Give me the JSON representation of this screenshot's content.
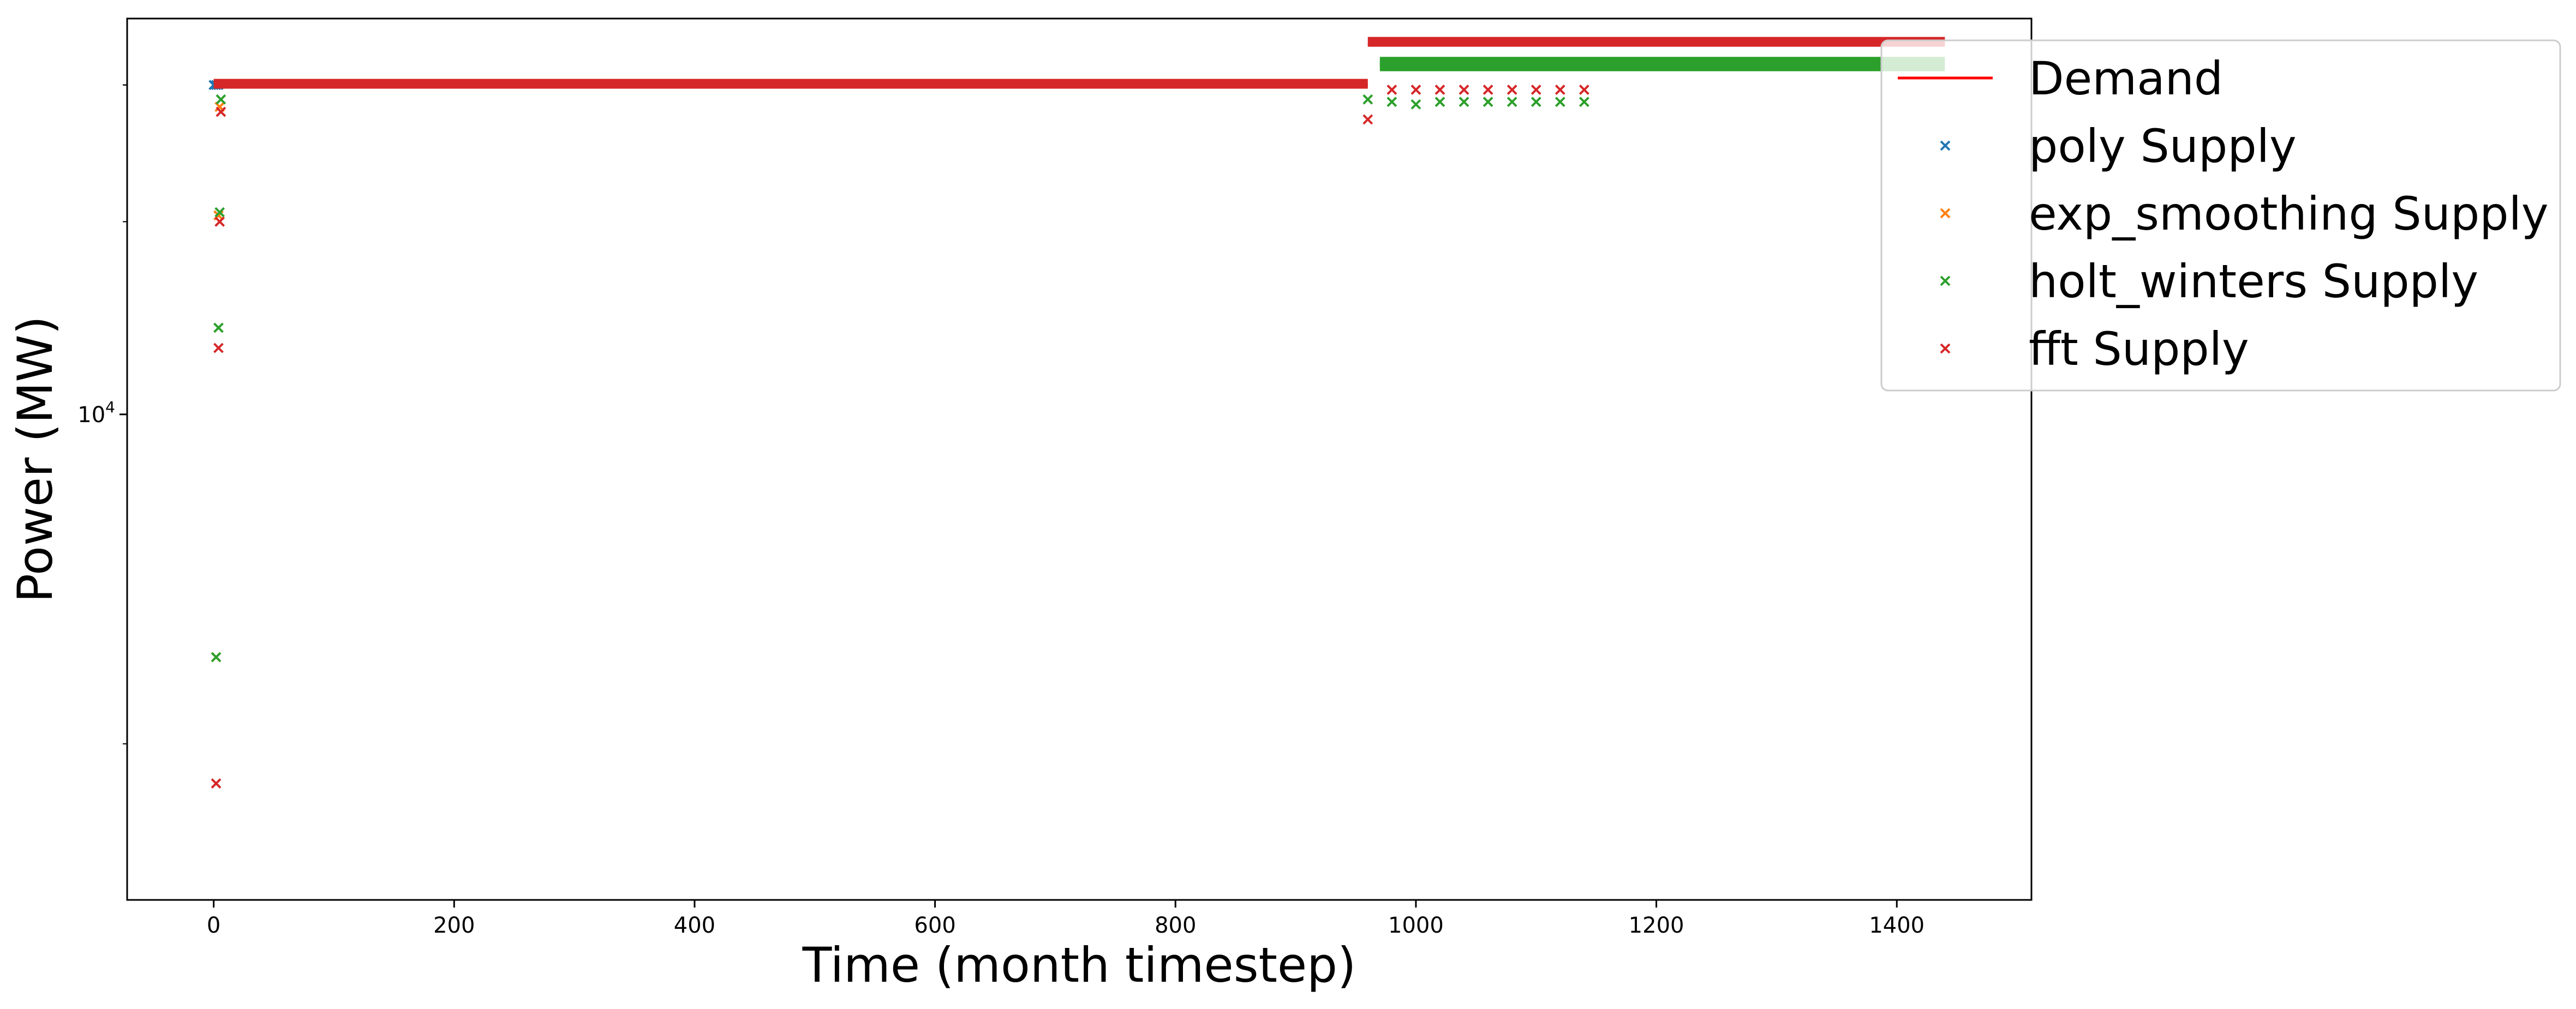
{
  "chart_data": {
    "type": "scatter",
    "xlabel": "Time (month timestep)",
    "ylabel": "Power (MW)",
    "yscale": "log",
    "xlim": [
      -72,
      1512
    ],
    "ylim": [
      3600,
      23000
    ],
    "x_ticks": [
      0,
      200,
      400,
      600,
      800,
      1000,
      1200,
      1400
    ],
    "x_tick_labels": [
      "0",
      "200",
      "400",
      "600",
      "800",
      "1000",
      "1200",
      "1400"
    ],
    "y_ticks": [
      10000
    ],
    "y_tick_label_base": "10",
    "y_tick_label_exp": "4",
    "grid": false,
    "legend_position": "upper-right",
    "series": [
      {
        "name": "Demand",
        "kind": "line",
        "color": "#ff0000",
        "segments": [
          {
            "x": [
              0,
              960
            ],
            "y": [
              20000,
              20000
            ]
          },
          {
            "x": [
              960,
              1440
            ],
            "y": [
              21800,
              21800
            ]
          }
        ]
      },
      {
        "name": "poly Supply",
        "kind": "scatter",
        "color": "#1f77b4",
        "points": [
          [
            0,
            20000
          ],
          [
            2,
            20000
          ],
          [
            4,
            20000
          ]
        ]
      },
      {
        "name": "exp_smoothing Supply",
        "kind": "scatter",
        "color": "#ff7f0e",
        "points": [
          [
            2,
            6000
          ],
          [
            4,
            15200
          ],
          [
            5,
            19100
          ]
        ]
      },
      {
        "name": "holt_winters Supply",
        "kind": "scatter",
        "color": "#2ca02c",
        "points": [
          [
            2,
            6000
          ],
          [
            4,
            12000
          ],
          [
            5,
            15300
          ],
          [
            6,
            19400
          ],
          [
            960,
            19400
          ],
          [
            980,
            19300
          ],
          [
            1000,
            19200
          ],
          [
            1020,
            19300
          ],
          [
            1040,
            19300
          ],
          [
            1060,
            19300
          ],
          [
            1080,
            19300
          ],
          [
            1100,
            19300
          ],
          [
            1120,
            19300
          ],
          [
            1140,
            19300
          ]
        ],
        "bands": [
          {
            "x": [
              970,
              1440
            ],
            "y": 20800
          },
          {
            "x": [
              970,
              1440
            ],
            "y": 21000
          }
        ]
      },
      {
        "name": "fft Supply",
        "kind": "scatter",
        "color": "#d62728",
        "points": [
          [
            2,
            4600
          ],
          [
            4,
            11500
          ],
          [
            5,
            15000
          ],
          [
            6,
            18900
          ],
          [
            960,
            18600
          ],
          [
            980,
            19800
          ],
          [
            1000,
            19800
          ],
          [
            1020,
            19800
          ],
          [
            1040,
            19800
          ],
          [
            1060,
            19800
          ],
          [
            1080,
            19800
          ],
          [
            1100,
            19800
          ],
          [
            1120,
            19800
          ],
          [
            1140,
            19800
          ]
        ],
        "bands": [
          {
            "x": [
              0,
              960
            ],
            "y": 20050
          },
          {
            "x": [
              960,
              1440
            ],
            "y": 21900
          }
        ]
      }
    ]
  }
}
